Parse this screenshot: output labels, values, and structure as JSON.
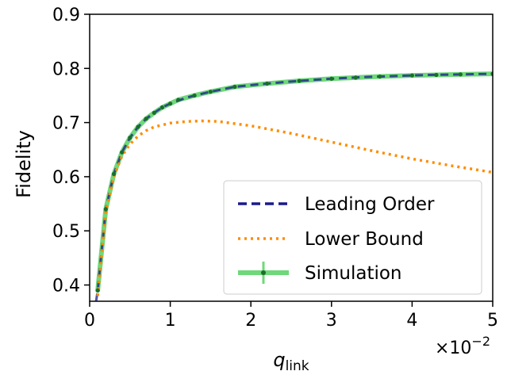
{
  "chart_data": {
    "type": "line",
    "title": "",
    "xlabel_main": "q",
    "xlabel_sub": "link",
    "ylabel": "Fidelity",
    "x_multiplier_base": "×10",
    "x_multiplier_exp": "−2",
    "xlim": [
      0,
      5
    ],
    "ylim": [
      0.37,
      0.9
    ],
    "xticks": [
      0,
      1,
      2,
      3,
      4,
      5
    ],
    "yticks": [
      0.4,
      0.5,
      0.6,
      0.7,
      0.8,
      0.9
    ],
    "xtick_labels": [
      "0",
      "1",
      "2",
      "3",
      "4",
      "5"
    ],
    "ytick_labels": [
      "0.4",
      "0.5",
      "0.6",
      "0.7",
      "0.8",
      "0.9"
    ],
    "grid": false,
    "legend_position": "lower-right",
    "series": [
      {
        "name": "Leading Order",
        "style": "dashed",
        "color": "#1a1a8c",
        "x": [
          0.08,
          0.1,
          0.2,
          0.3,
          0.4,
          0.5,
          0.6,
          0.7,
          0.8,
          0.9,
          1.0,
          1.2,
          1.5,
          1.8,
          2.2,
          2.6,
          3.0,
          3.4,
          3.8,
          4.2,
          4.6,
          5.0
        ],
        "y": [
          0.37,
          0.39,
          0.54,
          0.605,
          0.645,
          0.672,
          0.692,
          0.707,
          0.718,
          0.728,
          0.735,
          0.746,
          0.757,
          0.766,
          0.772,
          0.777,
          0.781,
          0.784,
          0.786,
          0.788,
          0.789,
          0.79
        ]
      },
      {
        "name": "Lower Bound",
        "style": "dotted",
        "color": "#ff8c00",
        "x": [
          0.1,
          0.2,
          0.3,
          0.4,
          0.5,
          0.6,
          0.7,
          0.8,
          1.0,
          1.2,
          1.4,
          1.6,
          1.8,
          2.0,
          2.5,
          3.0,
          3.5,
          4.0,
          4.5,
          5.0
        ],
        "y": [
          0.38,
          0.535,
          0.6,
          0.638,
          0.66,
          0.675,
          0.685,
          0.692,
          0.699,
          0.702,
          0.703,
          0.702,
          0.698,
          0.694,
          0.68,
          0.664,
          0.648,
          0.633,
          0.62,
          0.608
        ]
      },
      {
        "name": "Simulation",
        "style": "solid-markers",
        "color": "#6fd87a",
        "marker_color": "#1b6e2a",
        "x": [
          0.1,
          0.2,
          0.3,
          0.4,
          0.5,
          0.6,
          0.7,
          0.8,
          0.9,
          1.0,
          1.1,
          1.3,
          1.5,
          1.8,
          2.2,
          2.6,
          3.0,
          3.3,
          3.6,
          4.0,
          4.3,
          4.6,
          5.0
        ],
        "y": [
          0.39,
          0.54,
          0.605,
          0.645,
          0.672,
          0.692,
          0.707,
          0.718,
          0.728,
          0.735,
          0.742,
          0.75,
          0.757,
          0.766,
          0.772,
          0.777,
          0.781,
          0.783,
          0.785,
          0.787,
          0.788,
          0.789,
          0.79
        ]
      }
    ]
  }
}
